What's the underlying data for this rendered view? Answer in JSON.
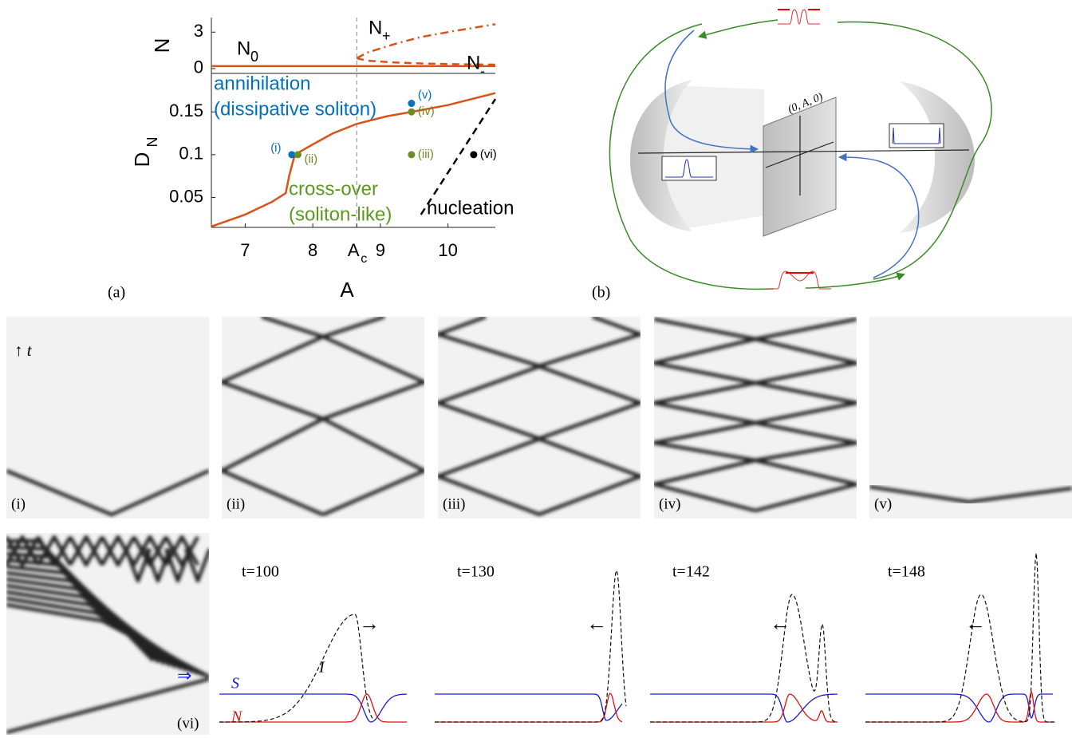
{
  "panel_labels": [
    "(a)",
    "(b)"
  ],
  "chart_data": [
    {
      "type": "line",
      "ylabel": "N",
      "xlim": [
        6.5,
        10.7
      ],
      "ylim": [
        -0.4,
        4.2
      ],
      "yticks": [
        0,
        3
      ],
      "vline": 8.65,
      "series": [
        {
          "color": "#d95319",
          "style": "solid",
          "x": [
            6.5,
            10.7
          ],
          "values": [
            0.2,
            0.2
          ]
        },
        {
          "color": "#d95319",
          "style": "dashdot",
          "x": [
            8.65,
            8.8,
            9.2,
            9.6,
            10.1,
            10.7
          ],
          "values": [
            0.85,
            1.3,
            2.0,
            2.6,
            3.1,
            3.65
          ]
        },
        {
          "color": "#d95319",
          "style": "dashed",
          "x": [
            8.65,
            8.8,
            9.2,
            9.6,
            10.1,
            10.7
          ],
          "values": [
            0.85,
            0.65,
            0.5,
            0.42,
            0.36,
            0.32
          ]
        }
      ],
      "annotations": [
        {
          "text": "N",
          "sub": "0"
        },
        {
          "text": "N",
          "sub": "+"
        },
        {
          "text": "N",
          "sub": "-"
        }
      ]
    },
    {
      "type": "line",
      "xlabel": "A",
      "ylabel": "D",
      "ylabel_sub": "N",
      "xlim": [
        6.5,
        10.7
      ],
      "ylim": [
        0.015,
        0.195
      ],
      "xticks": [
        7,
        8,
        {
          "value": 8.65,
          "label": "A",
          "sub": "c"
        },
        9,
        10
      ],
      "yticks": [
        0.05,
        0.1,
        0.15
      ],
      "vline": 8.65,
      "series": [
        {
          "color": "#d95319",
          "style": "solid",
          "x": [
            6.5,
            7,
            7.4,
            7.6,
            7.65,
            7.72,
            7.8,
            8,
            8.3,
            8.65,
            9.1,
            9.46,
            10,
            10.7
          ],
          "values": [
            0.016,
            0.03,
            0.045,
            0.055,
            0.075,
            0.096,
            0.103,
            0.112,
            0.125,
            0.136,
            0.145,
            0.15,
            0.158,
            0.172
          ]
        },
        {
          "color": "#000000",
          "style": "dashed",
          "x": [
            9.6,
            10.7
          ],
          "values": [
            0.03,
            0.165
          ]
        }
      ],
      "points": {
        "labels": [
          "(i)",
          "(ii)",
          "(iii)",
          "(iv)",
          "(v)",
          "(vi)"
        ],
        "x": [
          7.69,
          7.78,
          9.46,
          9.46,
          9.46,
          10.38
        ],
        "values": [
          0.1,
          0.1,
          0.1,
          0.15,
          0.16,
          0.1
        ],
        "colors": [
          "#0072bd",
          "#6b8e23",
          "#6b8e23",
          "#6b8e23",
          "#0072bd",
          "#000000"
        ]
      },
      "annotations": [
        {
          "text": "annihilation",
          "color": "#0072bd"
        },
        {
          "text": "(dissipative soliton)",
          "color": "#0072bd"
        },
        {
          "text": "cross-over",
          "color": "#5a9a1f"
        },
        {
          "text": "(soliton-like)",
          "color": "#5a9a1f"
        },
        {
          "text": "nucleation",
          "color": "#000000"
        }
      ]
    }
  ],
  "diagram": {
    "plane_label": "(0, A, 0)"
  },
  "spacetime": {
    "time_axis": "↑ t",
    "panels": [
      "(i)",
      "(ii)",
      "(iii)",
      "(iv)",
      "(v)",
      "(vi)"
    ]
  },
  "profiles": {
    "plots": [
      {
        "time": "t=100",
        "arrow": "→"
      },
      {
        "time": "t=130",
        "arrow": "←"
      },
      {
        "time": "t=142",
        "arrow": "←"
      },
      {
        "time": "t=148",
        "arrow": "←"
      }
    ],
    "labels": {
      "S": "S",
      "N": "N",
      "I": "I"
    },
    "incoming": "⇒"
  }
}
